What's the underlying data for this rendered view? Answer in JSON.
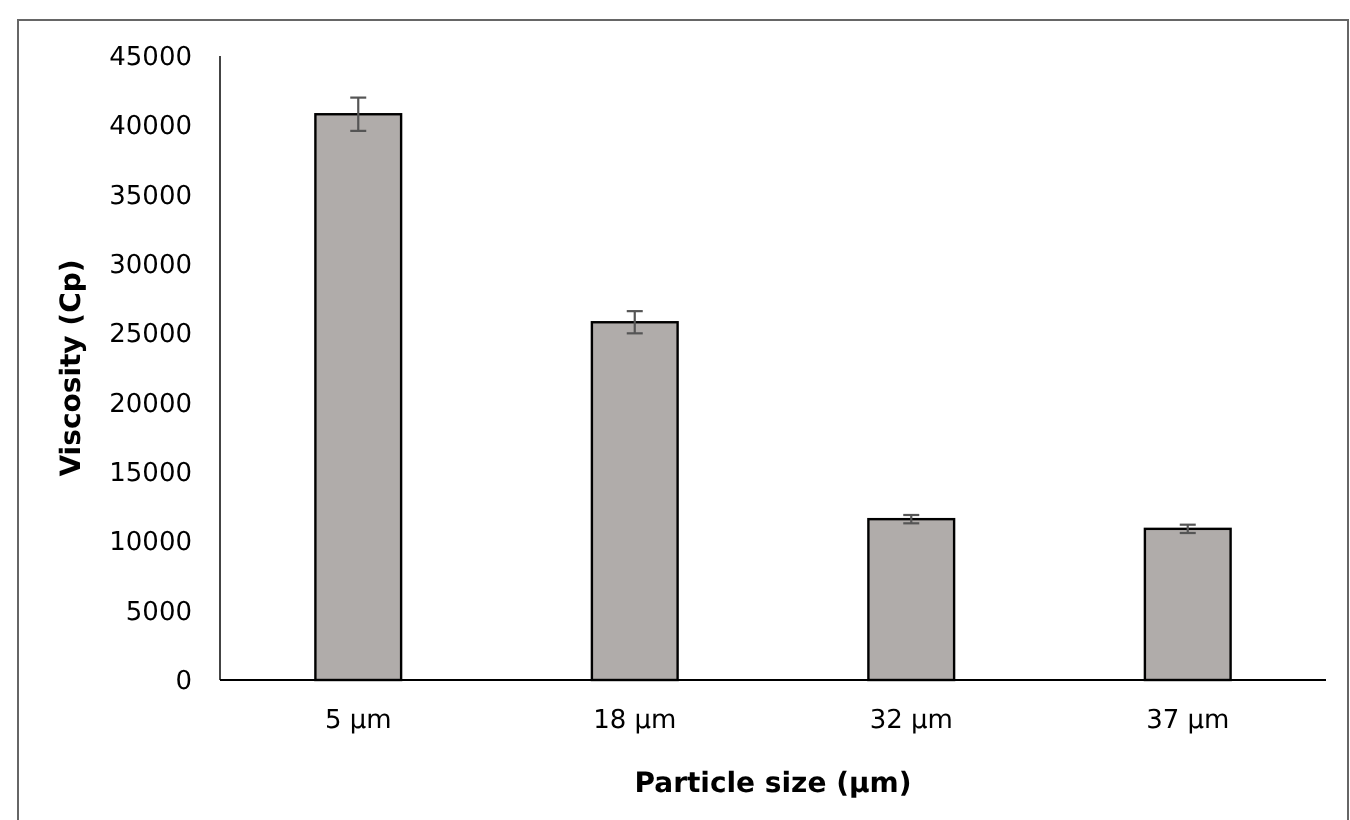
{
  "chart_data": {
    "type": "bar",
    "xlabel": "Particle size (µm)",
    "ylabel": "Viscosity (Cp)",
    "categories": [
      "5 µm",
      "18 µm",
      "32 µm",
      "37 µm"
    ],
    "values": [
      40800,
      25800,
      11600,
      10900
    ],
    "errors": [
      1200,
      800,
      300,
      300
    ],
    "color": "#b0acaa",
    "ylim": [
      0,
      45000
    ],
    "yticks": [
      0,
      5000,
      10000,
      15000,
      20000,
      25000,
      30000,
      35000,
      40000,
      45000
    ],
    "grid": false
  }
}
